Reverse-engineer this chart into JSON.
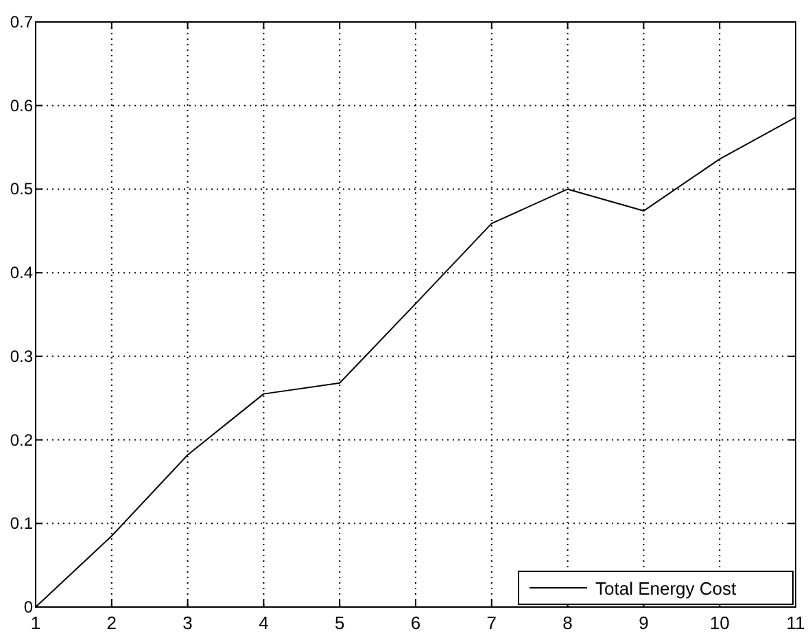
{
  "chart_data": {
    "type": "line",
    "x": [
      1,
      2,
      3,
      4,
      5,
      6,
      7,
      8,
      9,
      10,
      11
    ],
    "series": [
      {
        "name": "Total Energy Cost",
        "color": "#000000",
        "values": [
          0,
          0.085,
          0.182,
          0.255,
          0.268,
          0.363,
          0.459,
          0.5,
          0.474,
          0.536,
          0.586
        ]
      }
    ],
    "xlim": [
      1,
      11
    ],
    "xticks": [
      1,
      2,
      3,
      4,
      5,
      6,
      7,
      8,
      9,
      10,
      11
    ],
    "ylim": [
      0,
      0.7
    ],
    "yticks": [
      0,
      0.1,
      0.2,
      0.3,
      0.4,
      0.5,
      0.6,
      0.7
    ],
    "grid": true,
    "legend": "bottom right",
    "marker": "none",
    "line_style": "solid"
  }
}
